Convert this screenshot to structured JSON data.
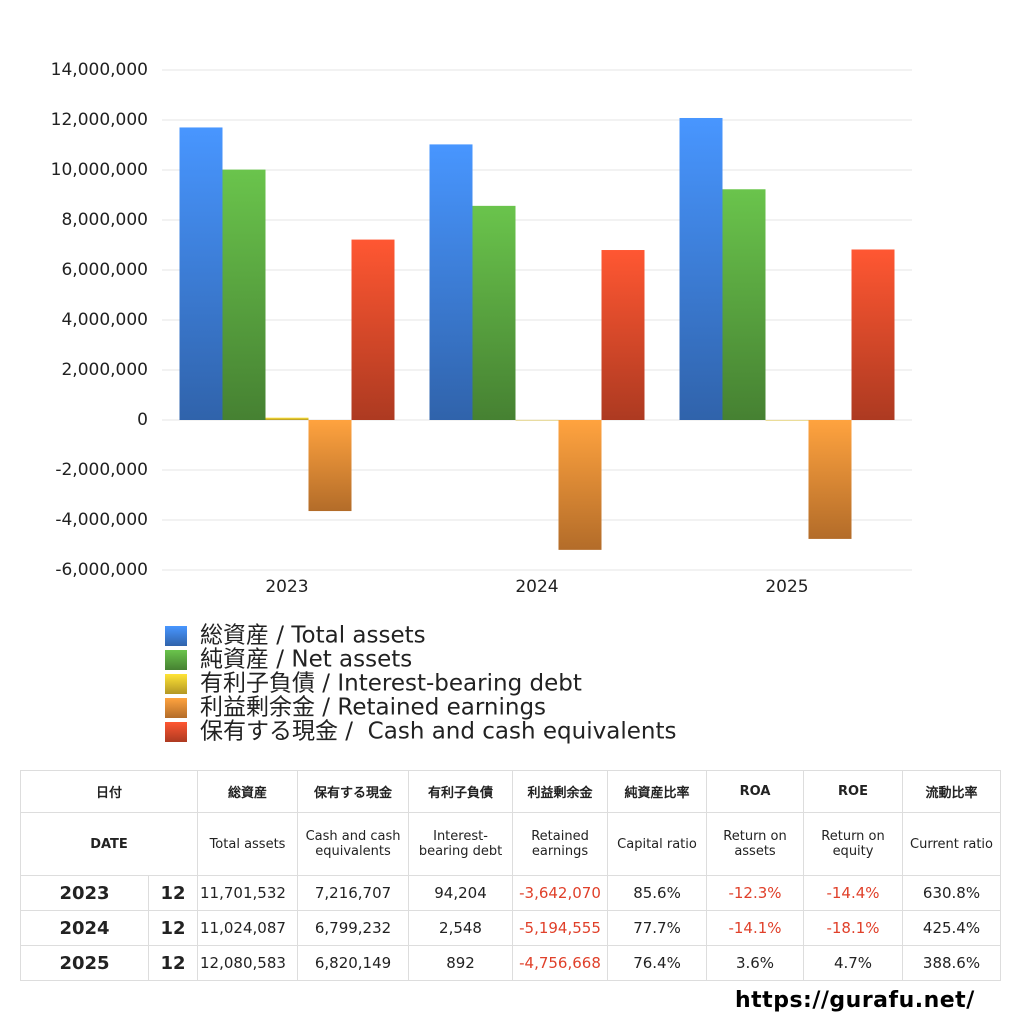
{
  "chart_data": {
    "type": "bar",
    "categories": [
      "2023",
      "2024",
      "2025"
    ],
    "series": [
      {
        "name": "総資産 / Total assets",
        "color": "#3d7fdb",
        "values": [
          11701532,
          11024087,
          12080583
        ]
      },
      {
        "name": "純資産 / Net assets",
        "color": "#5aa640",
        "values": [
          10016511,
          8565716,
          9229565
        ]
      },
      {
        "name": "有利子負債 / Interest-bearing debt",
        "color": "#e6c12e",
        "values": [
          94204,
          2548,
          892
        ]
      },
      {
        "name": "利益剰余金 / Retained earnings",
        "color": "#e58a35",
        "values": [
          -3642070,
          -5194555,
          -4756668
        ]
      },
      {
        "name": "保有する現金 /  Cash and cash equivalents",
        "color": "#de4a2a",
        "values": [
          7216707,
          6799232,
          6820149
        ]
      }
    ],
    "ylim": [
      -6000000,
      14000000
    ],
    "yticks": [
      {
        "value": -6000000,
        "label": "-6,000,000"
      },
      {
        "value": -4000000,
        "label": "-4,000,000"
      },
      {
        "value": -2000000,
        "label": "-2,000,000"
      },
      0,
      {
        "value": 2000000,
        "label": "2,000,000"
      },
      {
        "value": 4000000,
        "label": "4,000,000"
      },
      {
        "value": 6000000,
        "label": "6,000,000"
      },
      {
        "value": 8000000,
        "label": "8,000,000"
      },
      {
        "value": 10000000,
        "label": "10,000,000"
      },
      {
        "value": 12000000,
        "label": "12,000,000"
      },
      {
        "value": 14000000,
        "label": "14,000,000"
      }
    ],
    "grid": true
  },
  "table": {
    "header": [
      [
        "日付",
        "総資産",
        "保有する現金",
        "有利子負債",
        "利益剰余金",
        "純資産比率",
        "ROA",
        "ROE",
        "流動比率"
      ],
      [
        "DATE",
        "Total assets",
        "Cash and cash equivalents",
        "Interest-bearing debt",
        "Retained earnings",
        "Capital ratio",
        "Return on assets",
        "Return on equity",
        "Current ratio"
      ]
    ],
    "rows": [
      [
        "2023",
        "12",
        "11,701,532",
        "7,216,707",
        "94,204",
        "-3,642,070",
        "85.6%",
        "-12.3%",
        "-14.4%",
        "630.8%"
      ],
      [
        "2024",
        "12",
        "11,024,087",
        "6,799,232",
        "2,548",
        "-5,194,555",
        "77.7%",
        "-14.1%",
        "-18.1%",
        "425.4%"
      ],
      [
        "2025",
        "12",
        "12,080,583",
        "6,820,149",
        "892",
        "-4,756,668",
        "76.4%",
        "3.6%",
        "4.7%",
        "388.6%"
      ]
    ]
  },
  "footer": "https://gurafu.net/"
}
